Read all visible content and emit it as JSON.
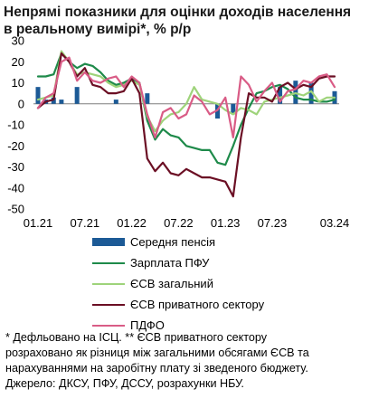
{
  "title_lines": [
    "Непрямі показники для оцінки доходів населення",
    "в реальному вимірі*, % р/р"
  ],
  "legend": [
    {
      "label": "Середня пенсія",
      "color": "#1c5a96",
      "kind": "bar"
    },
    {
      "label": "Зарплата ПФУ",
      "color": "#1e8a4a",
      "kind": "line"
    },
    {
      "label": "ЄСВ загальний",
      "color": "#9ed37a",
      "kind": "line"
    },
    {
      "label": "ЄСВ приватного сектору",
      "color": "#6b0f24",
      "kind": "line"
    },
    {
      "label": "ПДФО",
      "color": "#d95c86",
      "kind": "line"
    }
  ],
  "notes": [
    "* Дефльовано на ІСЦ. ** ЄСВ приватного сектору",
    "розраховано як різниця між загальними обсягами ЄСВ та",
    "нарахуваннями на заробітну плату зі зведеного бюджету.",
    "Джерело: ДКСУ, ПФУ, ДССУ, розрахунки НБУ."
  ],
  "chart_data": {
    "type": "bar+line",
    "x_tick_labels": [
      "01.21",
      "07.21",
      "01.22",
      "07.22",
      "01.23",
      "07.23",
      "03.24"
    ],
    "x_tick_months": [
      0,
      6,
      12,
      18,
      24,
      30,
      38
    ],
    "months": 39,
    "ylim": [
      -50,
      30
    ],
    "y_ticks": [
      30,
      20,
      10,
      0,
      -10,
      -20,
      -30,
      -40,
      -50
    ],
    "grid": false,
    "series": [
      {
        "name": "Середня пенсія",
        "type": "bar",
        "color": "#1c5a96",
        "points": [
          [
            0,
            8
          ],
          [
            1,
            2
          ],
          [
            2,
            3
          ],
          [
            3,
            2
          ],
          [
            5,
            8
          ],
          [
            10,
            2
          ],
          [
            14,
            5
          ],
          [
            23,
            -7
          ],
          [
            25,
            -5
          ],
          [
            31,
            8
          ],
          [
            33,
            11
          ],
          [
            35,
            10
          ],
          [
            38,
            6
          ]
        ]
      },
      {
        "name": "Зарплата ПФУ",
        "type": "line",
        "color": "#1e8a4a",
        "values": [
          13,
          13,
          14,
          24,
          20,
          17,
          19,
          18,
          15,
          11,
          9,
          10,
          12,
          10,
          -8,
          -17,
          -12,
          -15,
          -16,
          -20,
          -21,
          -22,
          -22,
          -28,
          -29,
          -20,
          -10,
          -2,
          5,
          6,
          8,
          9,
          7,
          3,
          2,
          2,
          1,
          1,
          2
        ]
      },
      {
        "name": "ЄСВ загальний",
        "type": "line",
        "color": "#9ed37a",
        "values": [
          2,
          3,
          4,
          25,
          20,
          14,
          15,
          14,
          13,
          10,
          8,
          9,
          11,
          9,
          -6,
          -13,
          -8,
          -5,
          -4,
          0,
          8,
          2,
          1,
          0,
          -3,
          -5,
          -2,
          -3,
          -5,
          1,
          2,
          3,
          4,
          5,
          4,
          6,
          1,
          3,
          3
        ]
      },
      {
        "name": "ЄСВ приватного сектору",
        "type": "line",
        "color": "#6b0f24",
        "values": [
          -2,
          1,
          2,
          24,
          20,
          13,
          17,
          9,
          8,
          5,
          5,
          6,
          12,
          5,
          -26,
          -32,
          -28,
          -33,
          -34,
          -31,
          -33,
          -35,
          -35,
          -36,
          -37,
          -44,
          -16,
          5,
          3,
          3,
          1,
          8,
          10,
          7,
          9,
          8,
          12,
          13,
          13
        ]
      },
      {
        "name": "ПДФО",
        "type": "line",
        "color": "#d95c86",
        "values": [
          -2,
          3,
          5,
          20,
          22,
          11,
          15,
          11,
          10,
          12,
          13,
          8,
          13,
          10,
          -5,
          -16,
          -4,
          -2,
          -7,
          -5,
          4,
          1,
          -5,
          -3,
          3,
          -16,
          13,
          9,
          1,
          6,
          10,
          1,
          6,
          7,
          11,
          10,
          13,
          14,
          8
        ]
      }
    ]
  }
}
